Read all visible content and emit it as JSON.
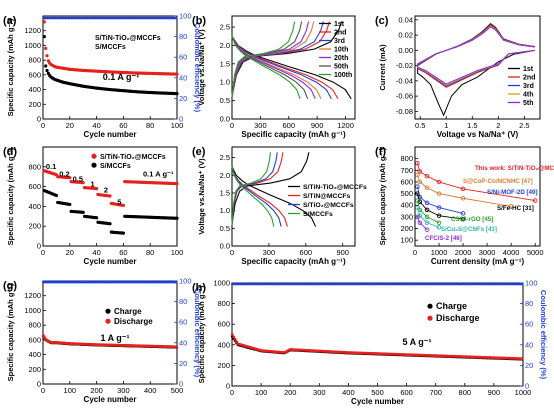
{
  "chart_data": [
    {
      "panel": "(a)",
      "type": "scatter",
      "xlabel": "Cycle number",
      "ylabel": "Specific capacity (mAh g⁻¹)",
      "y2label": "Coulombic efficiency (%)",
      "xlim": [
        0,
        100
      ],
      "xticks": [
        0,
        20,
        40,
        60,
        80,
        100
      ],
      "ylim": [
        0,
        1400
      ],
      "yticks": [
        0,
        200,
        400,
        600,
        800,
        1000,
        1200
      ],
      "y2lim": [
        0,
        100
      ],
      "y2ticks": [
        0,
        20,
        40,
        60,
        80,
        100
      ],
      "annotation": "0.1 A g⁻¹",
      "legend": [
        "S/TiN-TiO₂@MCCFs",
        "S/MCCFs"
      ],
      "legend_placement": "center",
      "series": [
        {
          "name": "S/TiN-TiO₂@MCCFs",
          "color": "#e8201c",
          "x": [
            1,
            2,
            3,
            4,
            5,
            6,
            8,
            10,
            15,
            20,
            30,
            40,
            50,
            60,
            70,
            80,
            90,
            100
          ],
          "y": [
            1320,
            960,
            860,
            790,
            760,
            740,
            720,
            705,
            690,
            675,
            660,
            650,
            640,
            632,
            625,
            620,
            615,
            610
          ]
        },
        {
          "name": "S/MCCFs",
          "color": "#000000",
          "x": [
            1,
            2,
            3,
            4,
            5,
            6,
            8,
            10,
            15,
            20,
            30,
            40,
            50,
            60,
            70,
            80,
            90,
            100
          ],
          "y": [
            1120,
            720,
            660,
            620,
            590,
            570,
            545,
            530,
            500,
            480,
            445,
            420,
            400,
            385,
            370,
            360,
            352,
            345
          ]
        },
        {
          "name": "CE S/TiN-TiO₂@MCCFs",
          "color": "#1f3fd8",
          "axis": "y2",
          "x": [
            1,
            100
          ],
          "y": [
            98,
            98
          ]
        },
        {
          "name": "CE S/MCCFs",
          "color": "#1f3fd8",
          "axis": "y2",
          "x": [
            1,
            100
          ],
          "y": [
            97,
            97
          ]
        }
      ]
    },
    {
      "panel": "(b)",
      "type": "line",
      "xlabel": "Specific capacity (mAh g⁻¹)",
      "ylabel": "Voltage vs.Na/Na⁺ (V)",
      "xlim": [
        0,
        1300
      ],
      "xticks": [
        0,
        300,
        600,
        900,
        1200
      ],
      "ylim": [
        0,
        2.8
      ],
      "yticks": [
        0.0,
        0.5,
        1.0,
        1.5,
        2.0,
        2.5
      ],
      "legend": [
        "1st",
        "2nd",
        "3rd",
        "10th",
        "20th",
        "50th",
        "100th"
      ],
      "legend_placement": "top-right",
      "series": [
        {
          "name": "1st",
          "color": "#000000",
          "capacity": 1260
        },
        {
          "name": "2nd",
          "color": "#e8201c",
          "capacity": 1120
        },
        {
          "name": "3rd",
          "color": "#1f3fd8",
          "capacity": 1050
        },
        {
          "name": "10th",
          "color": "#e07a30",
          "capacity": 940
        },
        {
          "name": "20th",
          "color": "#8a2be2",
          "capacity": 880
        },
        {
          "name": "50th",
          "color": "#555555",
          "capacity": 800
        },
        {
          "name": "100th",
          "color": "#2ca02c",
          "capacity": 720
        }
      ]
    },
    {
      "panel": "(c)",
      "type": "line",
      "xlabel": "Voltage vs Na/Na⁺ (V)",
      "ylabel": "Current (mA)",
      "xlim": [
        0.4,
        2.8
      ],
      "xticks": [
        0.5,
        1.0,
        1.5,
        2.0,
        2.5
      ],
      "ylim": [
        -0.09,
        0.045
      ],
      "yticks": [
        -0.08,
        -0.06,
        -0.04,
        -0.02,
        0.0,
        0.02,
        0.04
      ],
      "legend": [
        "1st",
        "2nd",
        "3rd",
        "4th",
        "5th"
      ],
      "legend_placement": "bottom-right",
      "series": [
        {
          "name": "1st",
          "color": "#000000"
        },
        {
          "name": "2nd",
          "color": "#e8201c"
        },
        {
          "name": "3rd",
          "color": "#1f3fd8"
        },
        {
          "name": "4th",
          "color": "#d4a017"
        },
        {
          "name": "5th",
          "color": "#8a2be2"
        }
      ]
    },
    {
      "panel": "(d)",
      "type": "scatter",
      "xlabel": "Cycle number",
      "ylabel": "Specific capacity (mAh g⁻¹)",
      "xlim": [
        0,
        100
      ],
      "xticks": [
        0,
        20,
        40,
        60,
        80,
        100
      ],
      "ylim": [
        0,
        1000
      ],
      "yticks": [
        0,
        200,
        400,
        600,
        800
      ],
      "legend": [
        "S/TiN-TiO₂@MCCFs",
        "S/MCCFs"
      ],
      "legend_placement": "top-right",
      "rate_labels": [
        {
          "text": "0.1",
          "x": 6,
          "y": 780
        },
        {
          "text": "0.2",
          "x": 16,
          "y": 700
        },
        {
          "text": "0.5",
          "x": 26,
          "y": 650
        },
        {
          "text": "1",
          "x": 37,
          "y": 600
        },
        {
          "text": "2",
          "x": 47,
          "y": 540
        },
        {
          "text": "5",
          "x": 57,
          "y": 420
        },
        {
          "text": "0.1 A g⁻¹",
          "x": 86,
          "y": 700
        }
      ],
      "series": [
        {
          "name": "S/TiN-TiO₂@MCCFs",
          "color": "#e8201c",
          "steps": [
            [
              1,
              10,
              760,
              720
            ],
            [
              11,
              20,
              700,
              690
            ],
            [
              21,
              30,
              650,
              640
            ],
            [
              31,
              40,
              590,
              580
            ],
            [
              41,
              50,
              520,
              505
            ],
            [
              51,
              60,
              430,
              410
            ],
            [
              61,
              100,
              650,
              630
            ]
          ]
        },
        {
          "name": "S/MCCFs",
          "color": "#000000",
          "steps": [
            [
              1,
              10,
              560,
              510
            ],
            [
              11,
              20,
              440,
              420
            ],
            [
              21,
              30,
              350,
              340
            ],
            [
              31,
              40,
              300,
              285
            ],
            [
              41,
              50,
              240,
              225
            ],
            [
              51,
              60,
              140,
              130
            ],
            [
              61,
              100,
              300,
              280
            ]
          ]
        }
      ]
    },
    {
      "panel": "(e)",
      "type": "line",
      "xlabel": "Specific capacity (mAh g⁻¹)",
      "ylabel": "Voltage vs.Na/Na⁺ (V)",
      "xlim": [
        0,
        1000
      ],
      "xticks": [
        0,
        300,
        600,
        900
      ],
      "ylim": [
        0,
        2.8
      ],
      "yticks": [
        0.0,
        0.5,
        1.0,
        1.5,
        2.0,
        2.5
      ],
      "legend": [
        "S/TiN-TiO₂@MCCFs",
        "S/TiN@MCCFs",
        "S/TiO₂@MCCFs",
        "S/MCCFs"
      ],
      "legend_placement": "center-right",
      "series": [
        {
          "name": "S/TiN-TiO₂@MCCFs",
          "color": "#000000",
          "capacity": 680
        },
        {
          "name": "S/TiN@MCCFs",
          "color": "#e8201c",
          "capacity": 450
        },
        {
          "name": "S/TiO₂@MCCFs",
          "color": "#1f3fd8",
          "capacity": 400
        },
        {
          "name": "S/MCCFs",
          "color": "#2ca02c",
          "capacity": 340
        }
      ]
    },
    {
      "panel": "(f)",
      "type": "scatter",
      "xlabel": "Current density (mA g⁻¹)",
      "ylabel": "Specific capacity (mAh g⁻¹)",
      "xlim": [
        0,
        5200
      ],
      "xticks": [
        0,
        1000,
        2000,
        3000,
        4000,
        5000
      ],
      "ylim": [
        50,
        900
      ],
      "yticks": [
        100,
        200,
        300,
        400,
        500,
        600,
        700,
        800
      ],
      "labels": [
        {
          "text": "This work: S/TiN-TiO₂@MCCFs",
          "color": "#e8201c"
        },
        {
          "text": "S@CoP-Co/NCNHC [47]",
          "color": "#e07a30"
        },
        {
          "text": "S/Ni-MOF-2D [49]",
          "color": "#1f3fd8"
        },
        {
          "text": "S/Fe-HC [31]",
          "color": "#000000"
        },
        {
          "text": "CS90-rGO [45]",
          "color": "#2ca02c"
        },
        {
          "text": "S/Cu₂S@CNFs [43]",
          "color": "#2bb3b3"
        },
        {
          "text": "CFC/S-2 [46]",
          "color": "#8a2be2"
        }
      ],
      "series": [
        {
          "name": "This work: S/TiN-TiO₂@MCCFs",
          "color": "#e8201c",
          "x": [
            100,
            200,
            500,
            1000,
            2000,
            5000
          ],
          "y": [
            760,
            690,
            650,
            600,
            540,
            440
          ]
        },
        {
          "name": "S@CoP-Co/NCNHC [47]",
          "color": "#e07a30",
          "x": [
            100,
            200,
            500,
            1000,
            2000,
            4000
          ],
          "y": [
            660,
            600,
            550,
            500,
            460,
            390
          ]
        },
        {
          "name": "S/Ni-MOF-2D [49]",
          "color": "#1f3fd8",
          "x": [
            100,
            200,
            500,
            1000,
            2000
          ],
          "y": [
            560,
            470,
            420,
            380,
            330
          ]
        },
        {
          "name": "S/Fe-HC [31]",
          "color": "#000000",
          "x": [
            100,
            200,
            500,
            1000,
            2000
          ],
          "y": [
            500,
            430,
            360,
            310,
            280
          ]
        },
        {
          "name": "CS90-rGO [45]",
          "color": "#2ca02c",
          "x": [
            100,
            200,
            500,
            1000
          ],
          "y": [
            440,
            360,
            300,
            250
          ]
        },
        {
          "name": "S/Cu₂S@CNFs [43]",
          "color": "#2bb3b3",
          "x": [
            100,
            200,
            500,
            1000
          ],
          "y": [
            380,
            310,
            250,
            210
          ]
        },
        {
          "name": "CFC/S-2 [46]",
          "color": "#8a2be2",
          "x": [
            100,
            200,
            500
          ],
          "y": [
            300,
            250,
            190
          ]
        }
      ]
    },
    {
      "panel": "(g)",
      "type": "scatter",
      "xlabel": "Cycle number",
      "ylabel": "Specific capacity (mAh g⁻¹)",
      "y2label": "Coulombic efficiency (%)",
      "xlim": [
        0,
        500
      ],
      "xticks": [
        0,
        100,
        200,
        300,
        400,
        500
      ],
      "ylim": [
        0,
        1400
      ],
      "yticks": [
        0,
        200,
        400,
        600,
        800,
        1000,
        1200
      ],
      "y2lim": [
        0,
        100
      ],
      "y2ticks": [
        0,
        20,
        40,
        60,
        80,
        100
      ],
      "annotation": "1 A g⁻¹",
      "legend": [
        "Charge",
        "Discharge"
      ],
      "legend_placement": "center-right",
      "series": [
        {
          "name": "Charge",
          "color": "#000000",
          "x": [
            1,
            10,
            30,
            50,
            100,
            200,
            300,
            400,
            500
          ],
          "y": [
            650,
            600,
            560,
            560,
            545,
            530,
            520,
            510,
            500
          ]
        },
        {
          "name": "Discharge",
          "color": "#e8201c",
          "x": [
            1,
            10,
            30,
            50,
            100,
            200,
            300,
            400,
            500
          ],
          "y": [
            660,
            605,
            565,
            565,
            550,
            535,
            525,
            515,
            505
          ]
        },
        {
          "name": "Coulombic efficiency",
          "color": "#1f3fd8",
          "axis": "y2",
          "x": [
            1,
            500
          ],
          "y": [
            99,
            99
          ]
        }
      ]
    },
    {
      "panel": "(h)",
      "type": "scatter",
      "xlabel": "Cycle number",
      "ylabel": "Specific capacity (mAh g⁻¹)",
      "y2label": "Coulombic efficiency (%)",
      "xlim": [
        0,
        1000
      ],
      "xticks": [
        0,
        100,
        200,
        300,
        400,
        500,
        600,
        700,
        800,
        900,
        1000
      ],
      "ylim": [
        0,
        1000
      ],
      "yticks": [
        0,
        200,
        400,
        600,
        800,
        1000
      ],
      "y2lim": [
        0,
        100
      ],
      "y2ticks": [
        0,
        20,
        40,
        60,
        80,
        100
      ],
      "annotation": "5 A g⁻¹",
      "legend": [
        "Charge",
        "Discharge"
      ],
      "legend_placement": "top-right",
      "series": [
        {
          "name": "Charge",
          "color": "#000000",
          "x": [
            1,
            20,
            100,
            180,
            200,
            400,
            600,
            800,
            1000
          ],
          "y": [
            480,
            400,
            340,
            320,
            350,
            320,
            300,
            280,
            260
          ]
        },
        {
          "name": "Discharge",
          "color": "#e8201c",
          "x": [
            1,
            20,
            100,
            180,
            200,
            400,
            600,
            800,
            1000
          ],
          "y": [
            500,
            410,
            345,
            325,
            355,
            325,
            305,
            285,
            265
          ]
        },
        {
          "name": "Coulombic efficiency",
          "color": "#1f3fd8",
          "axis": "y2",
          "x": [
            1,
            1000
          ],
          "y": [
            99,
            99
          ]
        }
      ]
    }
  ]
}
